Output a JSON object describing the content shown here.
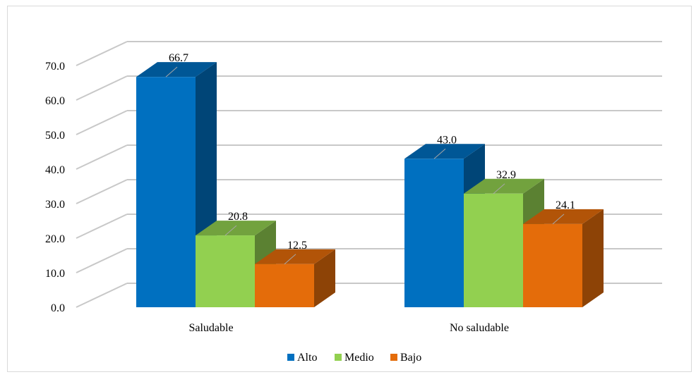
{
  "chart_data": {
    "type": "bar",
    "title": "",
    "xlabel": "",
    "ylabel": "",
    "ylim": [
      0,
      70
    ],
    "ytick_step": 10,
    "ytick_labels": [
      "0.0",
      "10.0",
      "20.0",
      "30.0",
      "40.0",
      "50.0",
      "60.0",
      "70.0"
    ],
    "grid": true,
    "legend_position": "bottom",
    "three_d": true,
    "categories": [
      "Saludable",
      "No saludable"
    ],
    "series": [
      {
        "name": "Alto",
        "values": [
          66.7,
          43.0
        ],
        "labels": [
          "66.7",
          "43.0"
        ],
        "color": "#0070C0"
      },
      {
        "name": "Medio",
        "values": [
          20.8,
          32.9
        ],
        "labels": [
          "20.8",
          "32.9"
        ],
        "color": "#92D050"
      },
      {
        "name": "Bajo",
        "values": [
          12.5,
          24.1
        ],
        "labels": [
          "12.5",
          "24.1"
        ],
        "color": "#E46C0A"
      }
    ]
  }
}
